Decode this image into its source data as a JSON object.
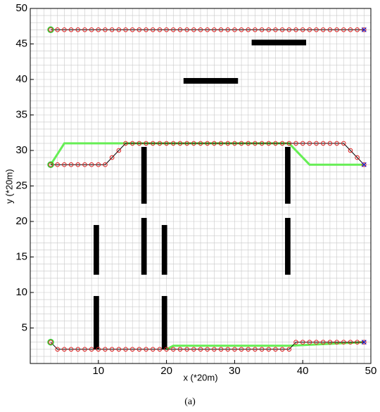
{
  "chart_data": {
    "type": "path-planning",
    "xlabel": "x (*20m)",
    "ylabel": "y (*20m)",
    "caption": "(a)",
    "xlim": [
      0,
      50
    ],
    "ylim": [
      0,
      50
    ],
    "xticks": [
      10,
      20,
      30,
      40,
      50
    ],
    "yticks": [
      5,
      10,
      15,
      20,
      25,
      30,
      35,
      40,
      45,
      50
    ],
    "grid": true,
    "xminor": [
      0,
      1,
      2,
      3,
      4,
      5,
      6,
      7,
      8,
      9,
      10,
      11,
      12,
      13,
      14,
      15,
      16,
      17,
      18,
      19,
      20,
      21,
      22,
      23,
      24,
      25,
      26,
      27,
      28,
      29,
      30,
      31,
      32,
      33,
      34,
      35,
      36,
      37,
      38,
      39,
      40,
      41,
      42,
      43,
      44,
      45,
      46,
      47,
      48,
      49,
      50
    ],
    "yminor": [
      0,
      1,
      2,
      3,
      4,
      5,
      6,
      7,
      8,
      9,
      10,
      11,
      12,
      13,
      14,
      15,
      16,
      17,
      18,
      19,
      20,
      21,
      22,
      23,
      24,
      25,
      26,
      27,
      28,
      29,
      30,
      31,
      32,
      33,
      34,
      35,
      36,
      37,
      38,
      39,
      40,
      41,
      42,
      43,
      44,
      45,
      46,
      47,
      48,
      49,
      50
    ],
    "obstacle_color": "#000000",
    "obstacles": [
      [
        32.5,
        40.5,
        44.8,
        45.6
      ],
      [
        22.5,
        30.5,
        39.4,
        40.2
      ],
      [
        16.3,
        17.1,
        22.5,
        30.5
      ],
      [
        16.3,
        17.1,
        12.5,
        20.5
      ],
      [
        37.4,
        38.2,
        22.5,
        30.5
      ],
      [
        37.4,
        38.2,
        12.5,
        20.5
      ],
      [
        9.3,
        10.1,
        12.5,
        19.5
      ],
      [
        9.3,
        10.1,
        2,
        9.5
      ],
      [
        19.3,
        20.1,
        12.5,
        19.5
      ],
      [
        19.3,
        20.1,
        2,
        9.5
      ]
    ],
    "green_color": "#66ee55",
    "green_paths": [
      {
        "x": [
          3,
          5,
          14,
          38,
          41,
          49
        ],
        "y": [
          28,
          31,
          31,
          31,
          28,
          28
        ]
      },
      {
        "x": [
          20,
          21,
          38,
          49
        ],
        "y": [
          2,
          2.5,
          2.5,
          3
        ]
      }
    ],
    "path_color": "#000000",
    "marker_color": "#dd2222",
    "paths": [
      {
        "x": [
          3,
          4,
          5,
          6,
          7,
          8,
          9,
          10,
          11,
          12,
          13,
          14,
          15,
          16,
          17,
          18,
          19,
          20,
          21,
          22,
          23,
          24,
          25,
          26,
          27,
          28,
          29,
          30,
          31,
          32,
          33,
          34,
          35,
          36,
          37,
          38,
          39,
          40,
          41,
          42,
          43,
          44,
          45,
          46,
          47,
          48,
          49
        ],
        "y": [
          47,
          47,
          47,
          47,
          47,
          47,
          47,
          47,
          47,
          47,
          47,
          47,
          47,
          47,
          47,
          47,
          47,
          47,
          47,
          47,
          47,
          47,
          47,
          47,
          47,
          47,
          47,
          47,
          47,
          47,
          47,
          47,
          47,
          47,
          47,
          47,
          47,
          47,
          47,
          47,
          47,
          47,
          47,
          47,
          47,
          47,
          47
        ]
      },
      {
        "x": [
          3,
          4,
          5,
          6,
          7,
          8,
          9,
          10,
          11,
          12,
          13,
          14,
          15,
          16,
          17,
          18,
          19,
          20,
          21,
          22,
          23,
          24,
          25,
          26,
          27,
          28,
          29,
          30,
          31,
          32,
          33,
          34,
          35,
          36,
          37,
          38,
          39,
          40,
          41,
          42,
          43,
          44,
          45,
          46,
          47,
          48,
          49
        ],
        "y": [
          28,
          28,
          28,
          28,
          28,
          28,
          28,
          28,
          28,
          29,
          30,
          31,
          31,
          31,
          31,
          31,
          31,
          31,
          31,
          31,
          31,
          31,
          31,
          31,
          31,
          31,
          31,
          31,
          31,
          31,
          31,
          31,
          31,
          31,
          31,
          31,
          31,
          31,
          31,
          31,
          31,
          31,
          31,
          31,
          30,
          29,
          28
        ]
      },
      {
        "x": [
          3,
          4,
          5,
          6,
          7,
          8,
          9,
          10,
          11,
          12,
          13,
          14,
          15,
          16,
          17,
          18,
          19,
          20,
          21,
          22,
          23,
          24,
          25,
          26,
          27,
          28,
          29,
          30,
          31,
          32,
          33,
          34,
          35,
          36,
          37,
          38,
          39,
          40,
          41,
          42,
          43,
          44,
          45,
          46,
          47,
          48,
          49
        ],
        "y": [
          3,
          2,
          2,
          2,
          2,
          2,
          2,
          2,
          2,
          2,
          2,
          2,
          2,
          2,
          2,
          2,
          2,
          2,
          2,
          2,
          2,
          2,
          2,
          2,
          2,
          2,
          2,
          2,
          2,
          2,
          2,
          2,
          2,
          2,
          2,
          2,
          3,
          3,
          3,
          3,
          3,
          3,
          3,
          3,
          3,
          3,
          3
        ]
      }
    ],
    "start_color": "#33cc33",
    "starts": {
      "x": [
        3,
        3,
        3
      ],
      "y": [
        47,
        28,
        3
      ]
    },
    "goal_color": "#1a1acc",
    "goals": {
      "x": [
        49,
        49,
        49
      ],
      "y": [
        47,
        28,
        3
      ]
    }
  }
}
